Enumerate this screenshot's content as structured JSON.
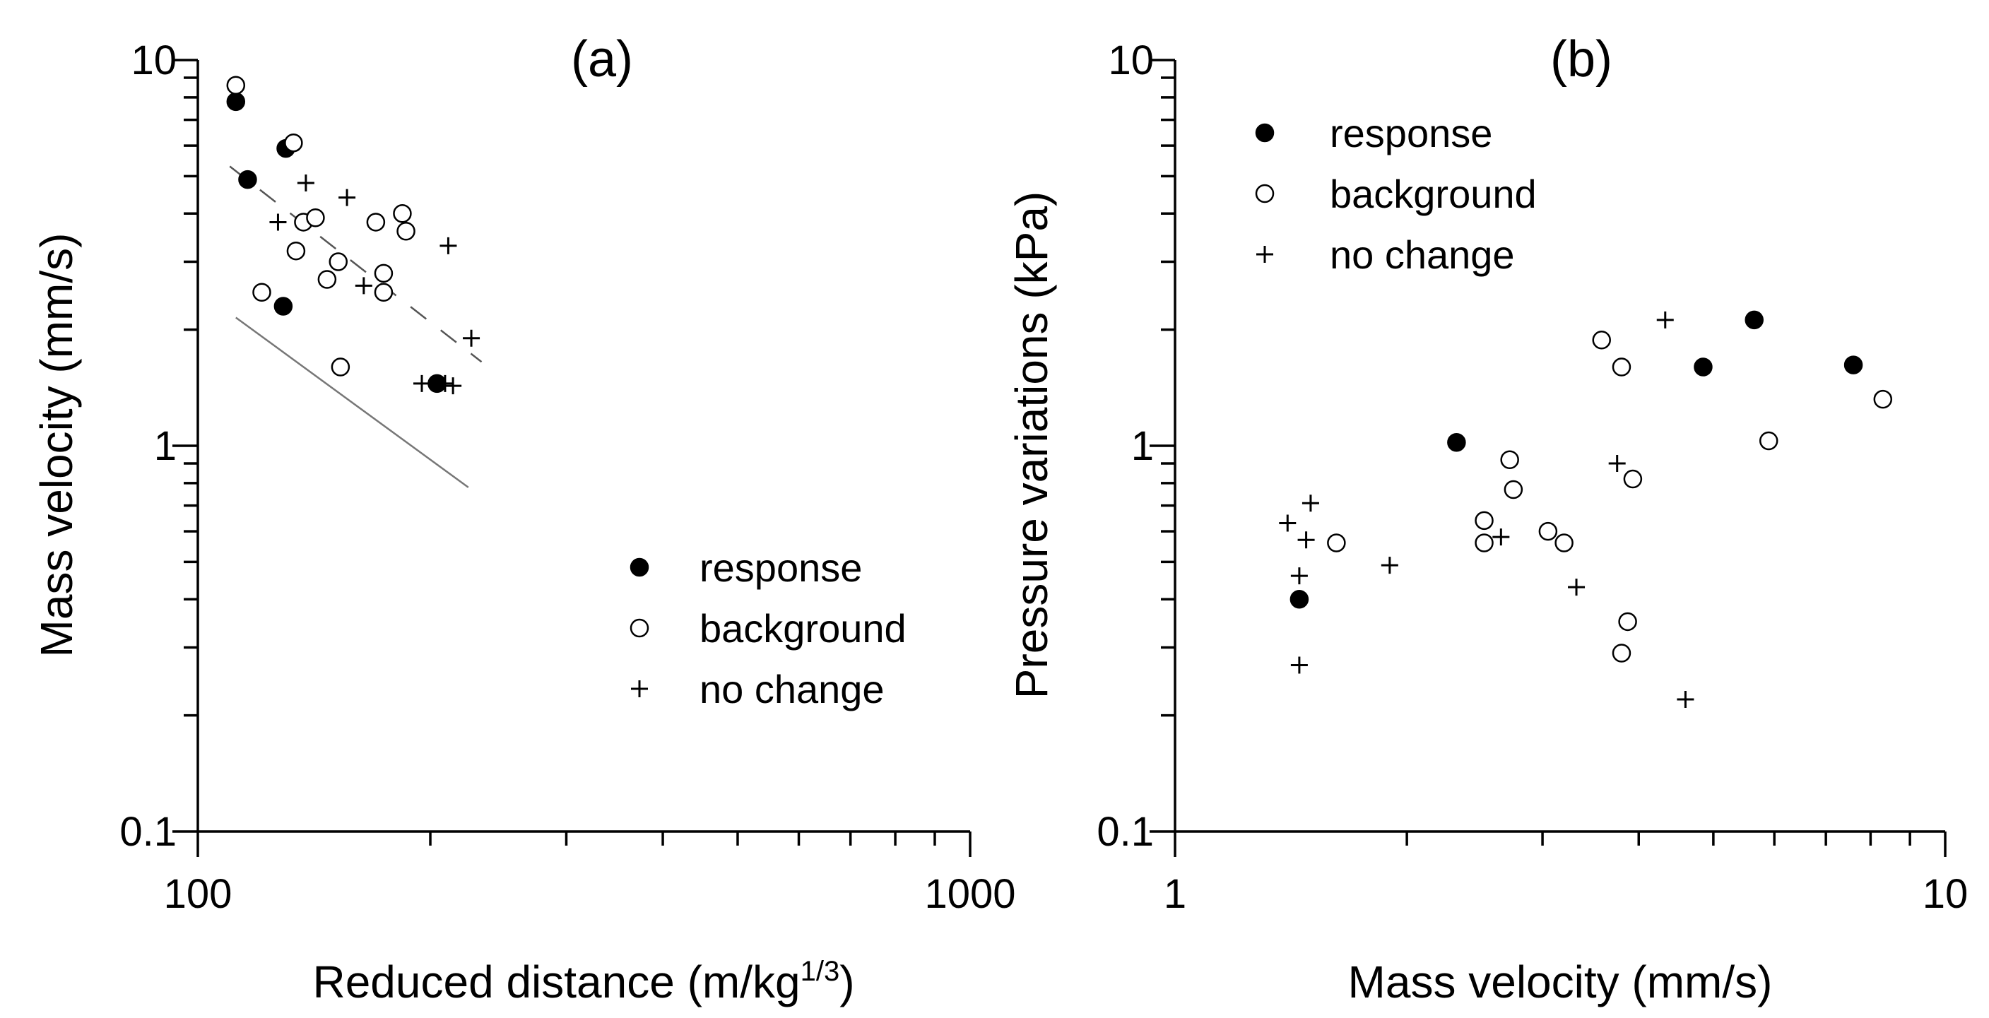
{
  "chart_data": [
    {
      "type": "scatter",
      "title": "(a)",
      "xlabel": "Reduced distance (m/kg",
      "xlabel_sup": "1/3",
      "xlabel_end": ")",
      "ylabel": "Mass velocity (mm/s)",
      "xscale": "log",
      "yscale": "log",
      "xlim": [
        100,
        1000
      ],
      "ylim": [
        0.1,
        10
      ],
      "x_tick_labels": [
        {
          "value": 100,
          "label": "100"
        },
        {
          "value": 1000,
          "label": "1000"
        }
      ],
      "y_tick_labels": [
        {
          "value": 0.1,
          "label": "0.1"
        },
        {
          "value": 1,
          "label": "1"
        },
        {
          "value": 10,
          "label": "10"
        }
      ],
      "legend_position": "center-right",
      "series": [
        {
          "name": "response",
          "marker": "filled-circle",
          "points": [
            [
              112,
              7.8
            ],
            [
              116,
              4.9
            ],
            [
              130,
              5.9
            ],
            [
              129,
              2.3
            ],
            [
              204,
              1.45
            ]
          ]
        },
        {
          "name": "background",
          "marker": "open-circle",
          "points": [
            [
              112,
              8.6
            ],
            [
              133,
              6.1
            ],
            [
              121,
              2.5
            ],
            [
              134,
              3.2
            ],
            [
              137,
              3.8
            ],
            [
              142,
              3.9
            ],
            [
              147,
              2.7
            ],
            [
              152,
              3.0
            ],
            [
              153,
              1.6
            ],
            [
              170,
              3.8
            ],
            [
              174,
              2.8
            ],
            [
              174,
              2.5
            ],
            [
              184,
              4.0
            ],
            [
              186,
              3.6
            ]
          ]
        },
        {
          "name": "no change",
          "marker": "plus",
          "points": [
            [
              127,
              3.8
            ],
            [
              138,
              4.8
            ],
            [
              156,
              4.4
            ],
            [
              164,
              2.6
            ],
            [
              211,
              3.3
            ],
            [
              226,
              1.9
            ],
            [
              195,
              1.45
            ],
            [
              209,
              1.45
            ],
            [
              214,
              1.43
            ]
          ]
        }
      ],
      "lines": [
        {
          "name": "upper fit",
          "style": "dashed",
          "points": [
            [
              110,
              5.3
            ],
            [
              233,
              1.65
            ]
          ]
        },
        {
          "name": "lower fit",
          "style": "solid",
          "points": [
            [
              112,
              2.15
            ],
            [
              224,
              0.78
            ]
          ]
        }
      ]
    },
    {
      "type": "scatter",
      "title": "(b)",
      "xlabel": "Mass velocity (mm/s)",
      "ylabel": "Pressure variations (kPa)",
      "xscale": "log",
      "yscale": "log",
      "xlim": [
        1,
        10
      ],
      "ylim": [
        0.1,
        10
      ],
      "x_tick_labels": [
        {
          "value": 1,
          "label": "1"
        },
        {
          "value": 10,
          "label": "10"
        }
      ],
      "y_tick_labels": [
        {
          "value": 0.1,
          "label": "0.1"
        },
        {
          "value": 1,
          "label": "1"
        },
        {
          "value": 10,
          "label": "10"
        }
      ],
      "legend_position": "top-left",
      "series": [
        {
          "name": "response",
          "marker": "filled-circle",
          "points": [
            [
              1.45,
              0.4
            ],
            [
              2.32,
              1.02
            ],
            [
              4.85,
              1.6
            ],
            [
              5.65,
              2.12
            ],
            [
              7.6,
              1.62
            ]
          ]
        },
        {
          "name": "background",
          "marker": "open-circle",
          "points": [
            [
              1.62,
              0.56
            ],
            [
              2.52,
              0.64
            ],
            [
              2.52,
              0.56
            ],
            [
              2.72,
              0.92
            ],
            [
              2.75,
              0.77
            ],
            [
              3.05,
              0.6
            ],
            [
              3.2,
              0.56
            ],
            [
              3.58,
              1.88
            ],
            [
              3.8,
              1.6
            ],
            [
              3.93,
              0.82
            ],
            [
              3.8,
              0.29
            ],
            [
              3.87,
              0.35
            ],
            [
              5.9,
              1.03
            ],
            [
              8.3,
              1.32
            ]
          ]
        },
        {
          "name": "no change",
          "marker": "plus",
          "points": [
            [
              1.4,
              0.63
            ],
            [
              1.5,
              0.71
            ],
            [
              1.48,
              0.57
            ],
            [
              1.45,
              0.46
            ],
            [
              1.45,
              0.27
            ],
            [
              1.9,
              0.49
            ],
            [
              2.65,
              0.58
            ],
            [
              3.32,
              0.43
            ],
            [
              3.75,
              0.9
            ],
            [
              4.33,
              2.12
            ],
            [
              4.6,
              0.22
            ]
          ]
        }
      ]
    }
  ]
}
